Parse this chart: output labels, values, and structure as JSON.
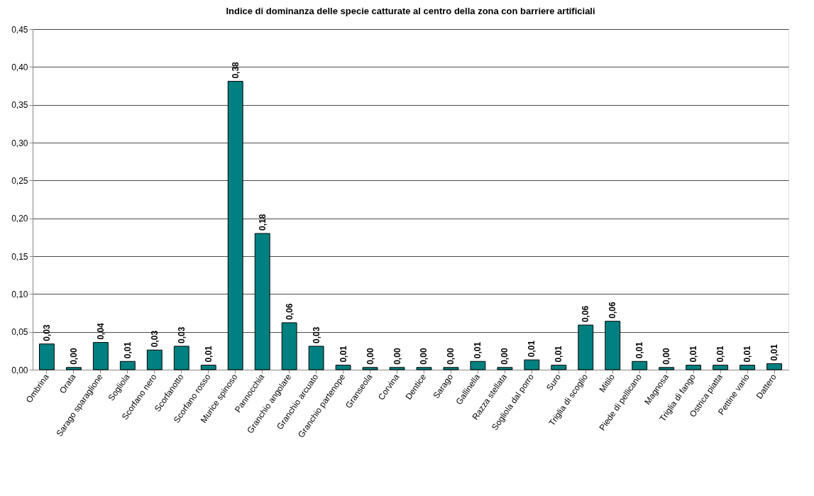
{
  "chart_data": {
    "type": "bar",
    "title": "Indice di dominanza delle specie catturate al centro della zona con barriere artificiali",
    "categories": [
      "Ombrina",
      "Orata",
      "Sarago sparaglione",
      "Sogliola",
      "Scorfano nero",
      "Scorfanotto",
      "Scorfano rosso",
      "Murice spinoso",
      "Pannocchia",
      "Granchio angolare",
      "Granchio arcuato",
      "Granchio partenope",
      "Granseola",
      "Corvina",
      "Dentice",
      "Sarago",
      "Gallinella",
      "Razza stellata",
      "Sogliola dal porro",
      "Suro",
      "Triglia di scoglio",
      "Mitilo",
      "Piede di pellicano",
      "Magnosa",
      "Triglia di fango",
      "Ostrica piatta",
      "Pettine vario",
      "Dattero"
    ],
    "values": [
      0.034,
      0.003,
      0.036,
      0.011,
      0.026,
      0.031,
      0.006,
      0.381,
      0.18,
      0.062,
      0.031,
      0.006,
      0.003,
      0.003,
      0.003,
      0.003,
      0.011,
      0.003,
      0.013,
      0.006,
      0.059,
      0.064,
      0.011,
      0.003,
      0.006,
      0.006,
      0.006,
      0.008
    ],
    "value_labels": [
      "0,03",
      "0,00",
      "0,04",
      "0,01",
      "0,03",
      "0,03",
      "0,01",
      "0,38",
      "0,18",
      "0,06",
      "0,03",
      "0,01",
      "0,00",
      "0,00",
      "0,00",
      "0,00",
      "0,01",
      "0,00",
      "0,01",
      "0,01",
      "0,06",
      "0,06",
      "0,01",
      "0,00",
      "0,01",
      "0,01",
      "0,01",
      "0,01"
    ],
    "color": "#008080",
    "ylim": [
      0,
      0.45
    ],
    "yticks": [
      {
        "value": 0,
        "label": "0,00"
      },
      {
        "value": 0.05,
        "label": "0,05"
      },
      {
        "value": 0.1,
        "label": "0,10"
      },
      {
        "value": 0.15,
        "label": "0,15"
      },
      {
        "value": 0.2,
        "label": "0,20"
      },
      {
        "value": 0.25,
        "label": "0,25"
      },
      {
        "value": 0.3,
        "label": "0,30"
      },
      {
        "value": 0.35,
        "label": "0,35"
      },
      {
        "value": 0.4,
        "label": "0,40"
      },
      {
        "value": 0.45,
        "label": "0,45"
      }
    ],
    "grid": "y"
  }
}
